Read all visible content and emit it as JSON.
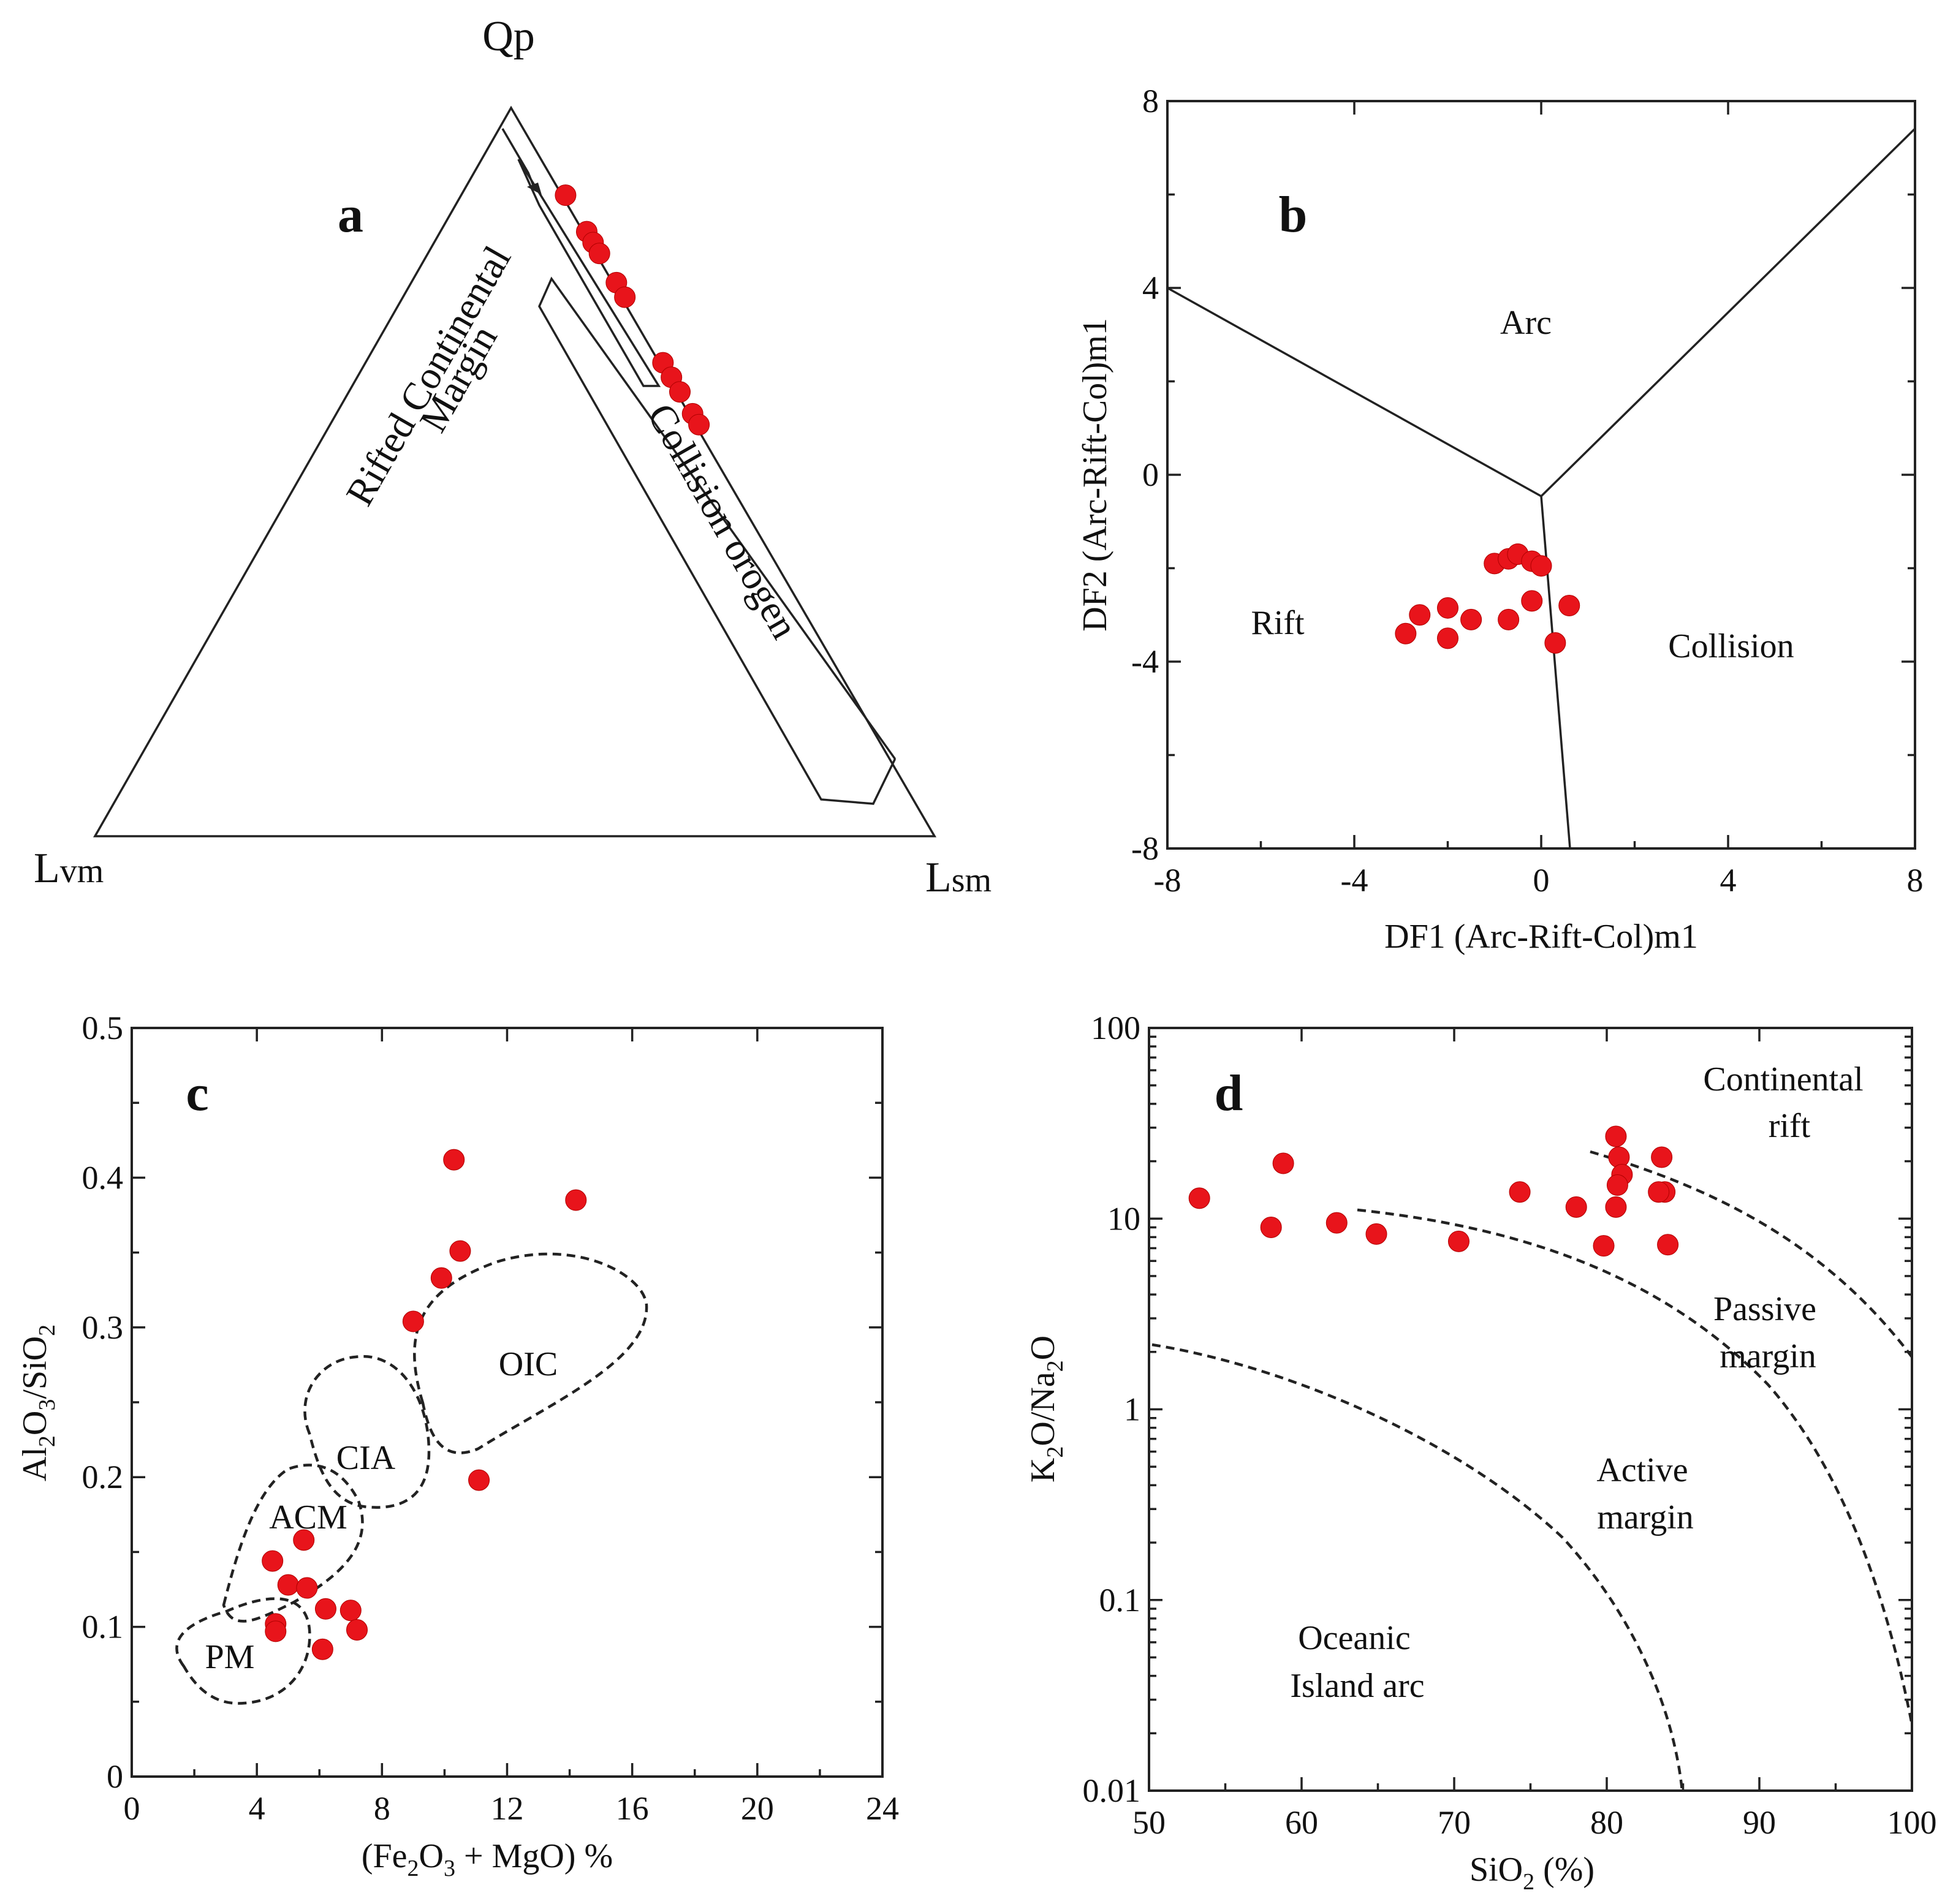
{
  "figure": {
    "colors": {
      "point": "#e8141b",
      "line": "#222222",
      "background": "#ffffff"
    }
  },
  "panels": {
    "a": {
      "letter": "a",
      "vertices": {
        "top": "Qp",
        "left": "L",
        "left_sub": "vm",
        "right": "L",
        "right_sub": "sm"
      },
      "fields": {
        "rifted_line1": "Rifted Continental",
        "rifted_line2": "Margin",
        "collision": "Collision orogen"
      }
    },
    "b": {
      "letter": "b",
      "fields": {
        "arc": "Arc",
        "rift": "Rift",
        "collision": "Collision"
      }
    },
    "c": {
      "letter": "c",
      "fields": {
        "oic": "OIC",
        "cia": "CIA",
        "acm": "ACM",
        "pm": "PM"
      }
    },
    "d": {
      "letter": "d",
      "fields": {
        "cr1": "Continental",
        "cr2": "rift",
        "pm1": "Passive",
        "pm2": "margin",
        "am1": "Active",
        "am2": "margin",
        "oia1": "Oceanic",
        "oia2": "Island arc"
      }
    }
  },
  "chart_data": [
    {
      "panel": "a",
      "type": "ternary",
      "components": [
        "Qp",
        "Lvm",
        "Lsm"
      ],
      "series": [
        {
          "name": "samples",
          "points": [
            {
              "Qp": 88,
              "Lvm": 0,
              "Lsm": 12
            },
            {
              "Qp": 83,
              "Lvm": 0,
              "Lsm": 17
            },
            {
              "Qp": 81.5,
              "Lvm": 0,
              "Lsm": 18.5
            },
            {
              "Qp": 80,
              "Lvm": 0,
              "Lsm": 20
            },
            {
              "Qp": 76,
              "Lvm": 0,
              "Lsm": 24
            },
            {
              "Qp": 74,
              "Lvm": 0,
              "Lsm": 26
            },
            {
              "Qp": 65,
              "Lvm": 0,
              "Lsm": 35
            },
            {
              "Qp": 63,
              "Lvm": 0,
              "Lsm": 37
            },
            {
              "Qp": 61,
              "Lvm": 0,
              "Lsm": 39
            },
            {
              "Qp": 58,
              "Lvm": 0,
              "Lsm": 42
            },
            {
              "Qp": 56.5,
              "Lvm": 0,
              "Lsm": 43.5
            }
          ]
        }
      ]
    },
    {
      "panel": "b",
      "type": "scatter",
      "xlabel": "DF1 (Arc-Rift-Col)m1",
      "ylabel": "DF2 (Arc-Rift-Col)m1",
      "xlim": [
        -8,
        8
      ],
      "ylim": [
        -8,
        8
      ],
      "xticks": [
        "-8",
        "-4",
        "0",
        "4",
        "8"
      ],
      "yticks": [
        "8",
        "4",
        "0",
        "-4",
        "-8"
      ],
      "series": [
        {
          "name": "samples",
          "x": [
            -1.0,
            -0.7,
            -0.5,
            -0.2,
            0.0,
            -0.2,
            0.6,
            -2.6,
            -2.0,
            -1.5,
            -2.9,
            -2.0,
            -0.7,
            0.3
          ],
          "y": [
            -1.9,
            -1.8,
            -1.7,
            -1.85,
            -1.95,
            -2.7,
            -2.8,
            -3.0,
            -2.85,
            -3.1,
            -3.4,
            -3.5,
            -3.1,
            -3.6
          ]
        }
      ]
    },
    {
      "panel": "c",
      "type": "scatter",
      "xlabel": "(Fe2O3 + MgO) %",
      "ylabel": "Al2O3/SiO2",
      "xlim": [
        0,
        24
      ],
      "ylim": [
        0,
        0.5
      ],
      "xticks": [
        "0",
        "4",
        "8",
        "12",
        "16",
        "20",
        "24"
      ],
      "yticks": [
        "0",
        "0.1",
        "0.2",
        "0.3",
        "0.4",
        "0.5"
      ],
      "series": [
        {
          "name": "samples",
          "x": [
            10.3,
            14.2,
            10.5,
            9.9,
            9.0,
            11.1,
            5.5,
            4.5,
            5.0,
            5.6,
            6.2,
            7.0,
            4.6,
            4.6,
            7.2,
            6.1
          ],
          "y": [
            0.412,
            0.385,
            0.351,
            0.333,
            0.304,
            0.198,
            0.158,
            0.144,
            0.128,
            0.126,
            0.112,
            0.111,
            0.102,
            0.097,
            0.098,
            0.085
          ]
        }
      ]
    },
    {
      "panel": "d",
      "type": "scatter",
      "xlabel": "SiO2 (%)",
      "ylabel": "K2O/Na2O",
      "yscale": "log",
      "xlim": [
        50,
        100
      ],
      "ylim": [
        0.01,
        100
      ],
      "xticks": [
        "50",
        "60",
        "70",
        "80",
        "90",
        "100"
      ],
      "yticks": [
        "100",
        "10",
        "1",
        "0.1",
        "0.01"
      ],
      "series": [
        {
          "name": "samples",
          "x": [
            53.3,
            58.8,
            58.0,
            62.3,
            64.9,
            70.3,
            74.3,
            78.0,
            79.8,
            80.6,
            80.8,
            81.0,
            80.7,
            80.6,
            83.6,
            83.8,
            83.4,
            84.0
          ],
          "y": [
            12.8,
            19.5,
            9.0,
            9.5,
            8.3,
            7.6,
            13.8,
            11.5,
            7.2,
            27.0,
            21.0,
            17.0,
            15.0,
            11.5,
            21.0,
            13.8,
            13.8,
            7.3
          ]
        }
      ]
    }
  ]
}
